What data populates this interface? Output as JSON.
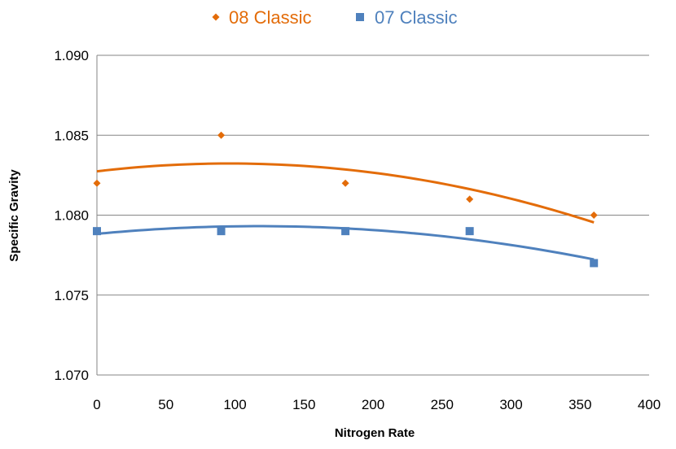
{
  "chart_data": {
    "type": "scatter",
    "title": "",
    "xlabel": "Nitrogen Rate",
    "ylabel": "Specific Gravity",
    "xlim": [
      0,
      400
    ],
    "ylim": [
      1.07,
      1.09
    ],
    "x_ticks": [
      "0",
      "50",
      "100",
      "150",
      "200",
      "250",
      "300",
      "350",
      "400"
    ],
    "y_ticks": [
      "1.070",
      "1.075",
      "1.080",
      "1.085",
      "1.090"
    ],
    "grid": "horizontal",
    "legend": "top-center",
    "series": [
      {
        "name": "08 Classic",
        "color": "#E36C09",
        "marker": "diamond",
        "trendline": "polynomial",
        "x": [
          0,
          90,
          180,
          270,
          360
        ],
        "y": [
          1.082,
          1.085,
          1.082,
          1.081,
          1.08
        ]
      },
      {
        "name": "07 Classic",
        "color": "#4F81BD",
        "marker": "square",
        "trendline": "polynomial",
        "x": [
          0,
          90,
          180,
          270,
          360
        ],
        "y": [
          1.079,
          1.079,
          1.079,
          1.079,
          1.077
        ]
      }
    ]
  }
}
